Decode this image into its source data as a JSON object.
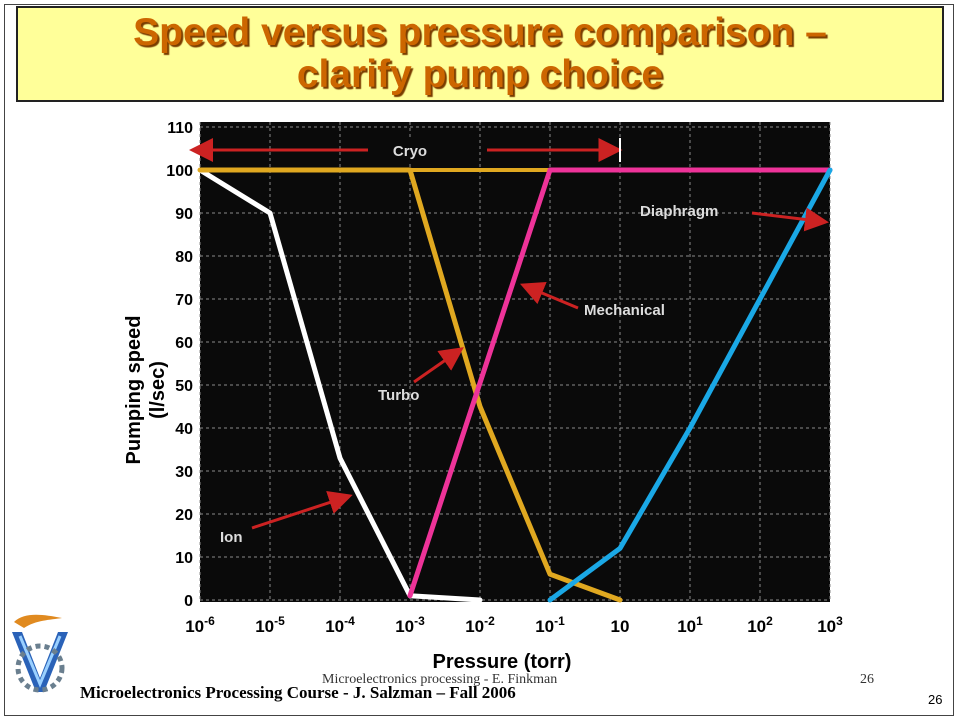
{
  "slide": {
    "title": "Speed versus pressure comparison –\nclarify pump choice",
    "footer_course": "Microelectronics  Processing  Course  - J. Salzman – Fall 2006",
    "footer_author": "Microelectronics processing - E. Finkman",
    "footer_page": "26",
    "slide_number": "26"
  },
  "logo": {
    "icon": "technion-logo-icon"
  },
  "chart_data": {
    "type": "line",
    "xlabel": "Pressure (torr)",
    "ylabel": "Pumping speed (l/sec)",
    "x_scale": "log",
    "xlim": [
      -6,
      3
    ],
    "ylim": [
      0,
      110
    ],
    "grid": true,
    "x_ticks": [
      {
        "exp": -6,
        "label": "10-6"
      },
      {
        "exp": -5,
        "label": "10-5"
      },
      {
        "exp": -4,
        "label": "10-4"
      },
      {
        "exp": -3,
        "label": "10-3"
      },
      {
        "exp": -2,
        "label": "10-2"
      },
      {
        "exp": -1,
        "label": "10-1"
      },
      {
        "exp": 0,
        "label": "10"
      },
      {
        "exp": 1,
        "label": "101"
      },
      {
        "exp": 2,
        "label": "102"
      },
      {
        "exp": 3,
        "label": "103"
      }
    ],
    "y_ticks": [
      "0",
      "10",
      "20",
      "30",
      "40",
      "50",
      "60",
      "70",
      "80",
      "90",
      "100",
      "110"
    ],
    "colors": {
      "background": "#0a0a0a",
      "grid": "#8a8a8a",
      "ion": "#ffffff",
      "turbo": "#e0a820",
      "mechanical": "#ee3399",
      "diaphragm": "#1aa8e6",
      "cryo": "#e0a820",
      "arrow": "#cc2222"
    },
    "series": [
      {
        "name": "Ion",
        "key": "ion",
        "points": [
          [
            -6,
            100
          ],
          [
            -5,
            90
          ],
          [
            -4,
            33
          ],
          [
            -3,
            1
          ],
          [
            -2,
            0
          ]
        ]
      },
      {
        "name": "Turbo",
        "key": "turbo",
        "points": [
          [
            -6,
            100
          ],
          [
            -3,
            100
          ],
          [
            -2,
            45
          ],
          [
            -1,
            6
          ],
          [
            0,
            0
          ]
        ]
      },
      {
        "name": "Mechanical",
        "key": "mechanical",
        "points": [
          [
            -3,
            1
          ],
          [
            -1,
            100
          ],
          [
            3,
            100
          ]
        ]
      },
      {
        "name": "Diaphragm",
        "key": "diaphragm",
        "points": [
          [
            -1,
            0
          ],
          [
            0,
            12
          ],
          [
            1,
            40
          ],
          [
            2,
            70
          ],
          [
            3,
            100
          ]
        ]
      }
    ],
    "cryo": {
      "label": "Cryo",
      "y": 100,
      "x_range": [
        -6,
        0
      ]
    },
    "annotations": [
      {
        "text": "Cryo",
        "kind": "range"
      },
      {
        "text": "Diaphragm",
        "target": [
          2.9,
          88
        ]
      },
      {
        "text": "Mechanical",
        "target": [
          -1.35,
          73
        ]
      },
      {
        "text": "Turbo",
        "target": [
          -2.3,
          58
        ]
      },
      {
        "text": "Ion",
        "target": [
          -3.9,
          24
        ]
      }
    ]
  }
}
